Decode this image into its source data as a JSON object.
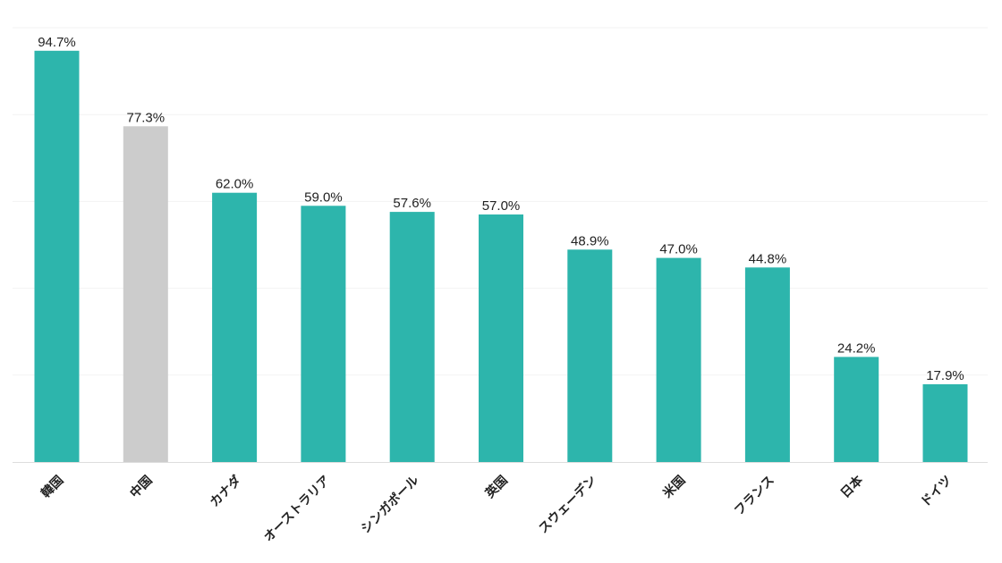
{
  "chart_data": {
    "type": "bar",
    "title": "",
    "xlabel": "",
    "ylabel": "",
    "categories": [
      "韓国",
      "中国",
      "カナダ",
      "オーストラリア",
      "シンガポール",
      "英国",
      "スウェーデン",
      "米国",
      "フランス",
      "日本",
      "ドイツ"
    ],
    "values": [
      94.7,
      77.3,
      62.0,
      59.0,
      57.6,
      57.0,
      48.9,
      47.0,
      44.8,
      24.2,
      17.9
    ],
    "value_labels": [
      "94.7%",
      "77.3%",
      "62.0%",
      "59.0%",
      "57.6%",
      "57.0%",
      "48.9%",
      "47.0%",
      "44.8%",
      "24.2%",
      "17.9%"
    ],
    "highlighted_category": "中国",
    "ylim": [
      0,
      100
    ],
    "grid": true,
    "legend": "none"
  },
  "colors": {
    "bar": "#2db5ac",
    "highlight_bar": "#cccccc",
    "grid": "#f3f3f3",
    "baseline": "#dddddd",
    "text": "#222222"
  }
}
